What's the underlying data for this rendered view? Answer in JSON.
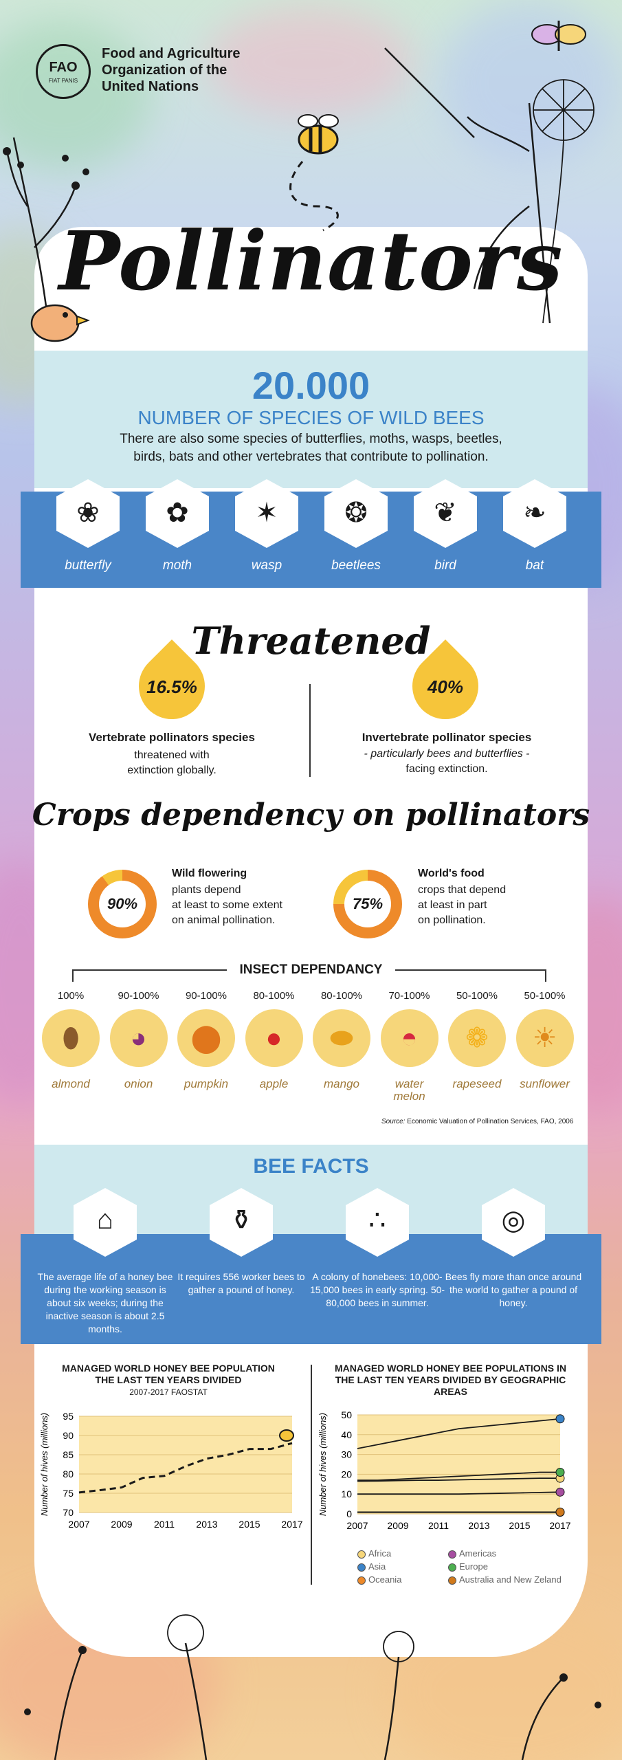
{
  "org": {
    "name": "Food and Agriculture\nOrganization of the\nUnited Nations",
    "logo_letters": "FAO",
    "logo_motto": "FIAT PANIS"
  },
  "title": "Pollinators",
  "wild_bees": {
    "number": "20.000",
    "label": "NUMBER OF SPECIES OF WILD BEES",
    "note": "There are also some species of butterflies, moths, wasps, beetles, birds, bats and other vertebrates that contribute to pollination."
  },
  "animals": [
    {
      "label": "butterfly",
      "icon": "butterfly-icon"
    },
    {
      "label": "moth",
      "icon": "moth-icon"
    },
    {
      "label": "wasp",
      "icon": "wasp-icon"
    },
    {
      "label": "beetlees",
      "icon": "beetle-icon"
    },
    {
      "label": "bird",
      "icon": "bird-icon"
    },
    {
      "label": "bat",
      "icon": "bat-icon"
    }
  ],
  "threatened": {
    "heading": "Threatened",
    "left": {
      "pct": "16.5%",
      "bold": "Vertebrate pollinators species",
      "text": "threatened with\nextinction globally."
    },
    "right": {
      "pct": "40%",
      "bold": "Invertebrate pollinator species",
      "italic": "- particularly bees and butterflies -",
      "text": "facing extinction."
    }
  },
  "crops": {
    "heading": "Crops dependency on pollinators",
    "left": {
      "pct": "90%",
      "value": 90,
      "bold": "Wild flowering",
      "text": "plants depend\nat least to some extent\non animal pollination."
    },
    "right": {
      "pct": "75%",
      "value": 75,
      "bold": "World's food",
      "text": "crops that depend\nat least in part\non pollination."
    },
    "colors": {
      "ring": "#ee8a2a",
      "ring_rest": "#f6c53a"
    }
  },
  "insect_dependancy": {
    "heading": "INSECT DEPENDANCY",
    "items": [
      {
        "pct": "100%",
        "name": "almond",
        "icon": "almond-icon"
      },
      {
        "pct": "90-100%",
        "name": "onion",
        "icon": "onion-icon"
      },
      {
        "pct": "90-100%",
        "name": "pumpkin",
        "icon": "pumpkin-icon"
      },
      {
        "pct": "80-100%",
        "name": "apple",
        "icon": "apple-icon"
      },
      {
        "pct": "80-100%",
        "name": "mango",
        "icon": "mango-icon"
      },
      {
        "pct": "70-100%",
        "name": "water\nmelon",
        "icon": "watermelon-icon"
      },
      {
        "pct": "50-100%",
        "name": "rapeseed",
        "icon": "rapeseed-icon"
      },
      {
        "pct": "50-100%",
        "name": "sunflower",
        "icon": "sunflower-icon"
      }
    ],
    "source_label": "Source:",
    "source": "Economic Valuation of Pollination Services, FAO, 2006"
  },
  "bee_facts": {
    "heading": "BEE FACTS",
    "facts": [
      {
        "icon": "cake-icon",
        "text": "The average life of a honey bee during the working season is about six weeks; during the inactive season is about 2.5 months."
      },
      {
        "icon": "honey-pot-icon",
        "text": "It requires 556 worker bees to gather a pound of honey."
      },
      {
        "icon": "bee-colony-icon",
        "text": "A colony of honebees: 10,000-15,000 bees in early spring. 50-80,000 bees in summer."
      },
      {
        "icon": "globe-icon",
        "text": "Bees fly more than once around the world to gather a pound of honey."
      }
    ]
  },
  "chart_data": [
    {
      "type": "line",
      "title": "MANAGED WORLD HONEY BEE POPULATION THE LAST TEN YEARS DIVIDED",
      "subtitle": "2007-2017 FAOSTAT",
      "ylabel": "Number of hives (millions)",
      "xlabel": "",
      "x": [
        2007,
        2008,
        2009,
        2010,
        2011,
        2012,
        2013,
        2014,
        2015,
        2016,
        2017
      ],
      "series": [
        {
          "values": [
            75.2,
            75.8,
            76.5,
            79,
            79.5,
            82,
            84,
            85,
            86.5,
            86.5,
            88
          ]
        }
      ],
      "xticks": [
        2007,
        2009,
        2011,
        2013,
        2015,
        2017
      ],
      "yticks": [
        70,
        75,
        80,
        85,
        90,
        95
      ],
      "ylim": [
        70,
        95
      ],
      "grid": true,
      "line_style": "dashed"
    },
    {
      "type": "line",
      "title": "MANAGED WORLD HONEY BEE POPULATIONS IN THE LAST TEN YEARS DIVIDED BY GEOGRAPHIC AREAS",
      "ylabel": "Number of hives (millions)",
      "xlabel": "",
      "x": [
        2007,
        2008,
        2009,
        2010,
        2011,
        2012,
        2013,
        2014,
        2015,
        2016,
        2017
      ],
      "series": [
        {
          "name": "Africa",
          "color": "#f6d67a",
          "values": [
            16.5,
            16.6,
            16.8,
            17,
            17,
            17.2,
            17.4,
            17.6,
            17.8,
            18,
            18
          ]
        },
        {
          "name": "Asia",
          "color": "#3b83c8",
          "values": [
            33,
            35,
            37,
            39,
            41,
            43,
            44,
            45,
            46,
            47,
            48
          ]
        },
        {
          "name": "Oceania",
          "color": "#ee8a2a",
          "values": [
            0.8,
            0.8,
            0.8,
            0.8,
            0.8,
            0.8,
            0.8,
            0.8,
            0.8,
            0.8,
            0.8
          ]
        },
        {
          "name": "Americas",
          "color": "#a64ea0",
          "values": [
            10,
            10,
            10,
            10,
            10,
            10,
            10.2,
            10.4,
            10.6,
            10.8,
            11
          ]
        },
        {
          "name": "Europe",
          "color": "#4caf50",
          "values": [
            17,
            17,
            17.5,
            18,
            18.5,
            19,
            19.5,
            20,
            20.5,
            21,
            21
          ]
        },
        {
          "name": "Australia and New Zeland",
          "color": "#d17a1c",
          "values": [
            0.9,
            0.9,
            0.9,
            0.9,
            0.9,
            0.9,
            0.9,
            0.9,
            0.9,
            0.9,
            0.9
          ]
        }
      ],
      "xticks": [
        2007,
        2009,
        2011,
        2013,
        2015,
        2017
      ],
      "yticks": [
        0,
        10,
        20,
        30,
        40,
        50
      ],
      "ylim": [
        0,
        50
      ],
      "grid": true,
      "legend": "bottom"
    }
  ],
  "colors": {
    "accent_blue": "#3b83c8",
    "band_blue": "#4a86c8",
    "light_band": "#cfe9ee",
    "yellow": "#f6c53a",
    "chart_fill": "#fbe6a8"
  }
}
